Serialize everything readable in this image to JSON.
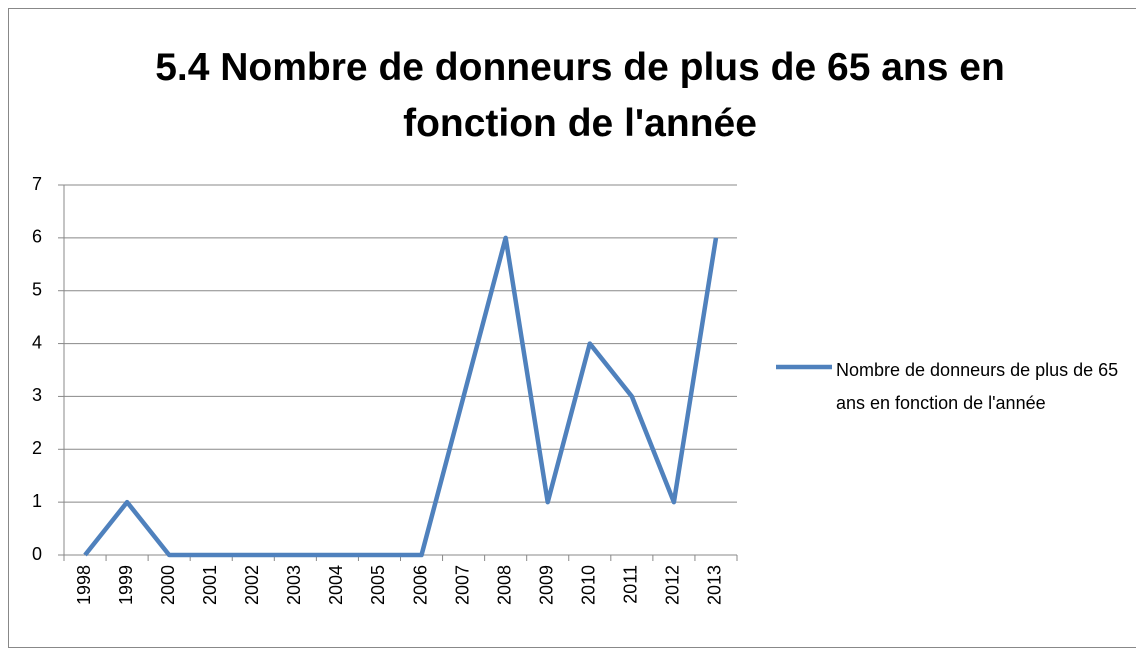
{
  "chart_data": {
    "type": "line",
    "title": "5.4 Nombre de donneurs de plus de 65 ans en fonction de l'année",
    "categories": [
      "1998",
      "1999",
      "2000",
      "2001",
      "2002",
      "2003",
      "2004",
      "2005",
      "2006",
      "2007",
      "2008",
      "2009",
      "2010",
      "2011",
      "2012",
      "2013"
    ],
    "series": [
      {
        "name": "Nombre de donneurs de plus de 65 ans en fonction de l'année",
        "color": "#4f81bd",
        "values": [
          0,
          1,
          0,
          0,
          0,
          0,
          0,
          0,
          0,
          3,
          6,
          1,
          4,
          3,
          1,
          6
        ]
      }
    ],
    "ylim": [
      0,
      7
    ],
    "yticks": [
      0,
      1,
      2,
      3,
      4,
      5,
      6,
      7
    ],
    "grid": true,
    "legend": "right"
  }
}
